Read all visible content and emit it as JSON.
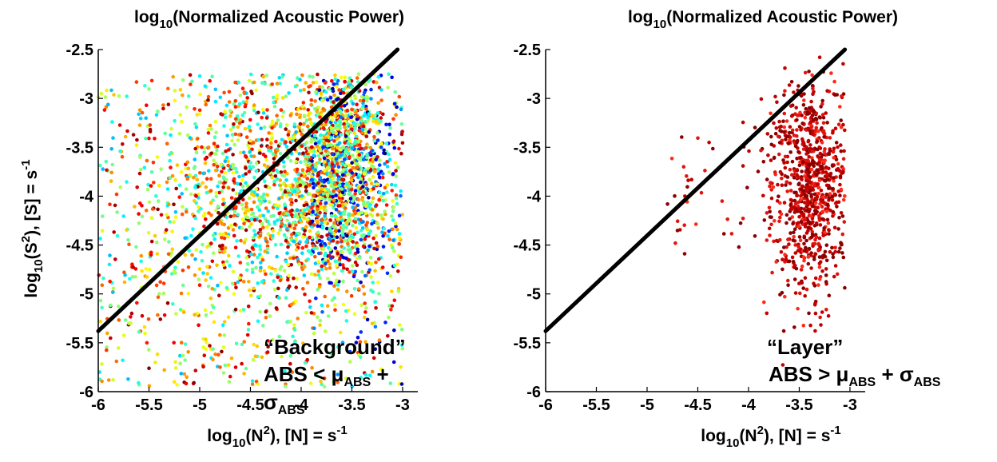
{
  "chart_data": [
    {
      "type": "scatter",
      "title": {
        "prefix": "log",
        "sub": "10",
        "rest": "(Normalized Acoustic Power)"
      },
      "xlabel": {
        "p1": "log",
        "s1": "10",
        "p2": "(N",
        "sup2": "2",
        "p3": "), [N] = s",
        "sup3": "-1"
      },
      "ylabel": {
        "p1": "log",
        "s1": "10",
        "p2": "(S",
        "sup2": "2",
        "p3": "), [S] = s",
        "sup3": "-1"
      },
      "xlim": [
        -6,
        -2.85
      ],
      "ylim": [
        -6,
        -2.5
      ],
      "xticks": [
        "-6",
        "-5.5",
        "-5",
        "-4.5",
        "-4",
        "-3.5",
        "-3"
      ],
      "yticks": [
        "-2.5",
        "-3",
        "-3.5",
        "-4",
        "-4.5",
        "-5",
        "-5.5",
        "-6"
      ],
      "reference_line": {
        "x": [
          -6,
          -3.05
        ],
        "y": [
          -5.38,
          -2.5
        ],
        "color": "#000000"
      },
      "colormap": "jet",
      "point_count_estimate": 3200,
      "annotation": {
        "line1": "“Background”",
        "line2_main": "ABS < μ",
        "line2_sub": "ABS",
        "line2_tail": " +",
        "line3_main": "σ",
        "line3_sub": "ABS"
      },
      "grid": false
    },
    {
      "type": "scatter",
      "title": {
        "prefix": "log",
        "sub": "10",
        "rest": "(Normalized Acoustic Power)"
      },
      "xlabel": {
        "p1": "log",
        "s1": "10",
        "p2": "(N",
        "sup2": "2",
        "p3": "), [N] = s",
        "sup3": "-1"
      },
      "xlim": [
        -6,
        -2.85
      ],
      "ylim": [
        -6,
        -2.5
      ],
      "xticks": [
        "-6",
        "-5.5",
        "-5",
        "-4.5",
        "-4",
        "-3.5",
        "-3"
      ],
      "yticks": [
        "-2.5",
        "-3",
        "-3.5",
        "-4",
        "-4.5",
        "-5",
        "-5.5",
        "-6"
      ],
      "reference_line": {
        "x": [
          -6,
          -3.05
        ],
        "y": [
          -5.38,
          -2.5
        ],
        "color": "#000000"
      },
      "colormap": "dark red to red",
      "point_count_estimate": 900,
      "annotation": {
        "line1": "“Layer”",
        "line2_main": "ABS > μ",
        "line2_sub": "ABS",
        "line2_mid": " + σ",
        "line2_sub2": "ABS"
      },
      "grid": false
    }
  ]
}
